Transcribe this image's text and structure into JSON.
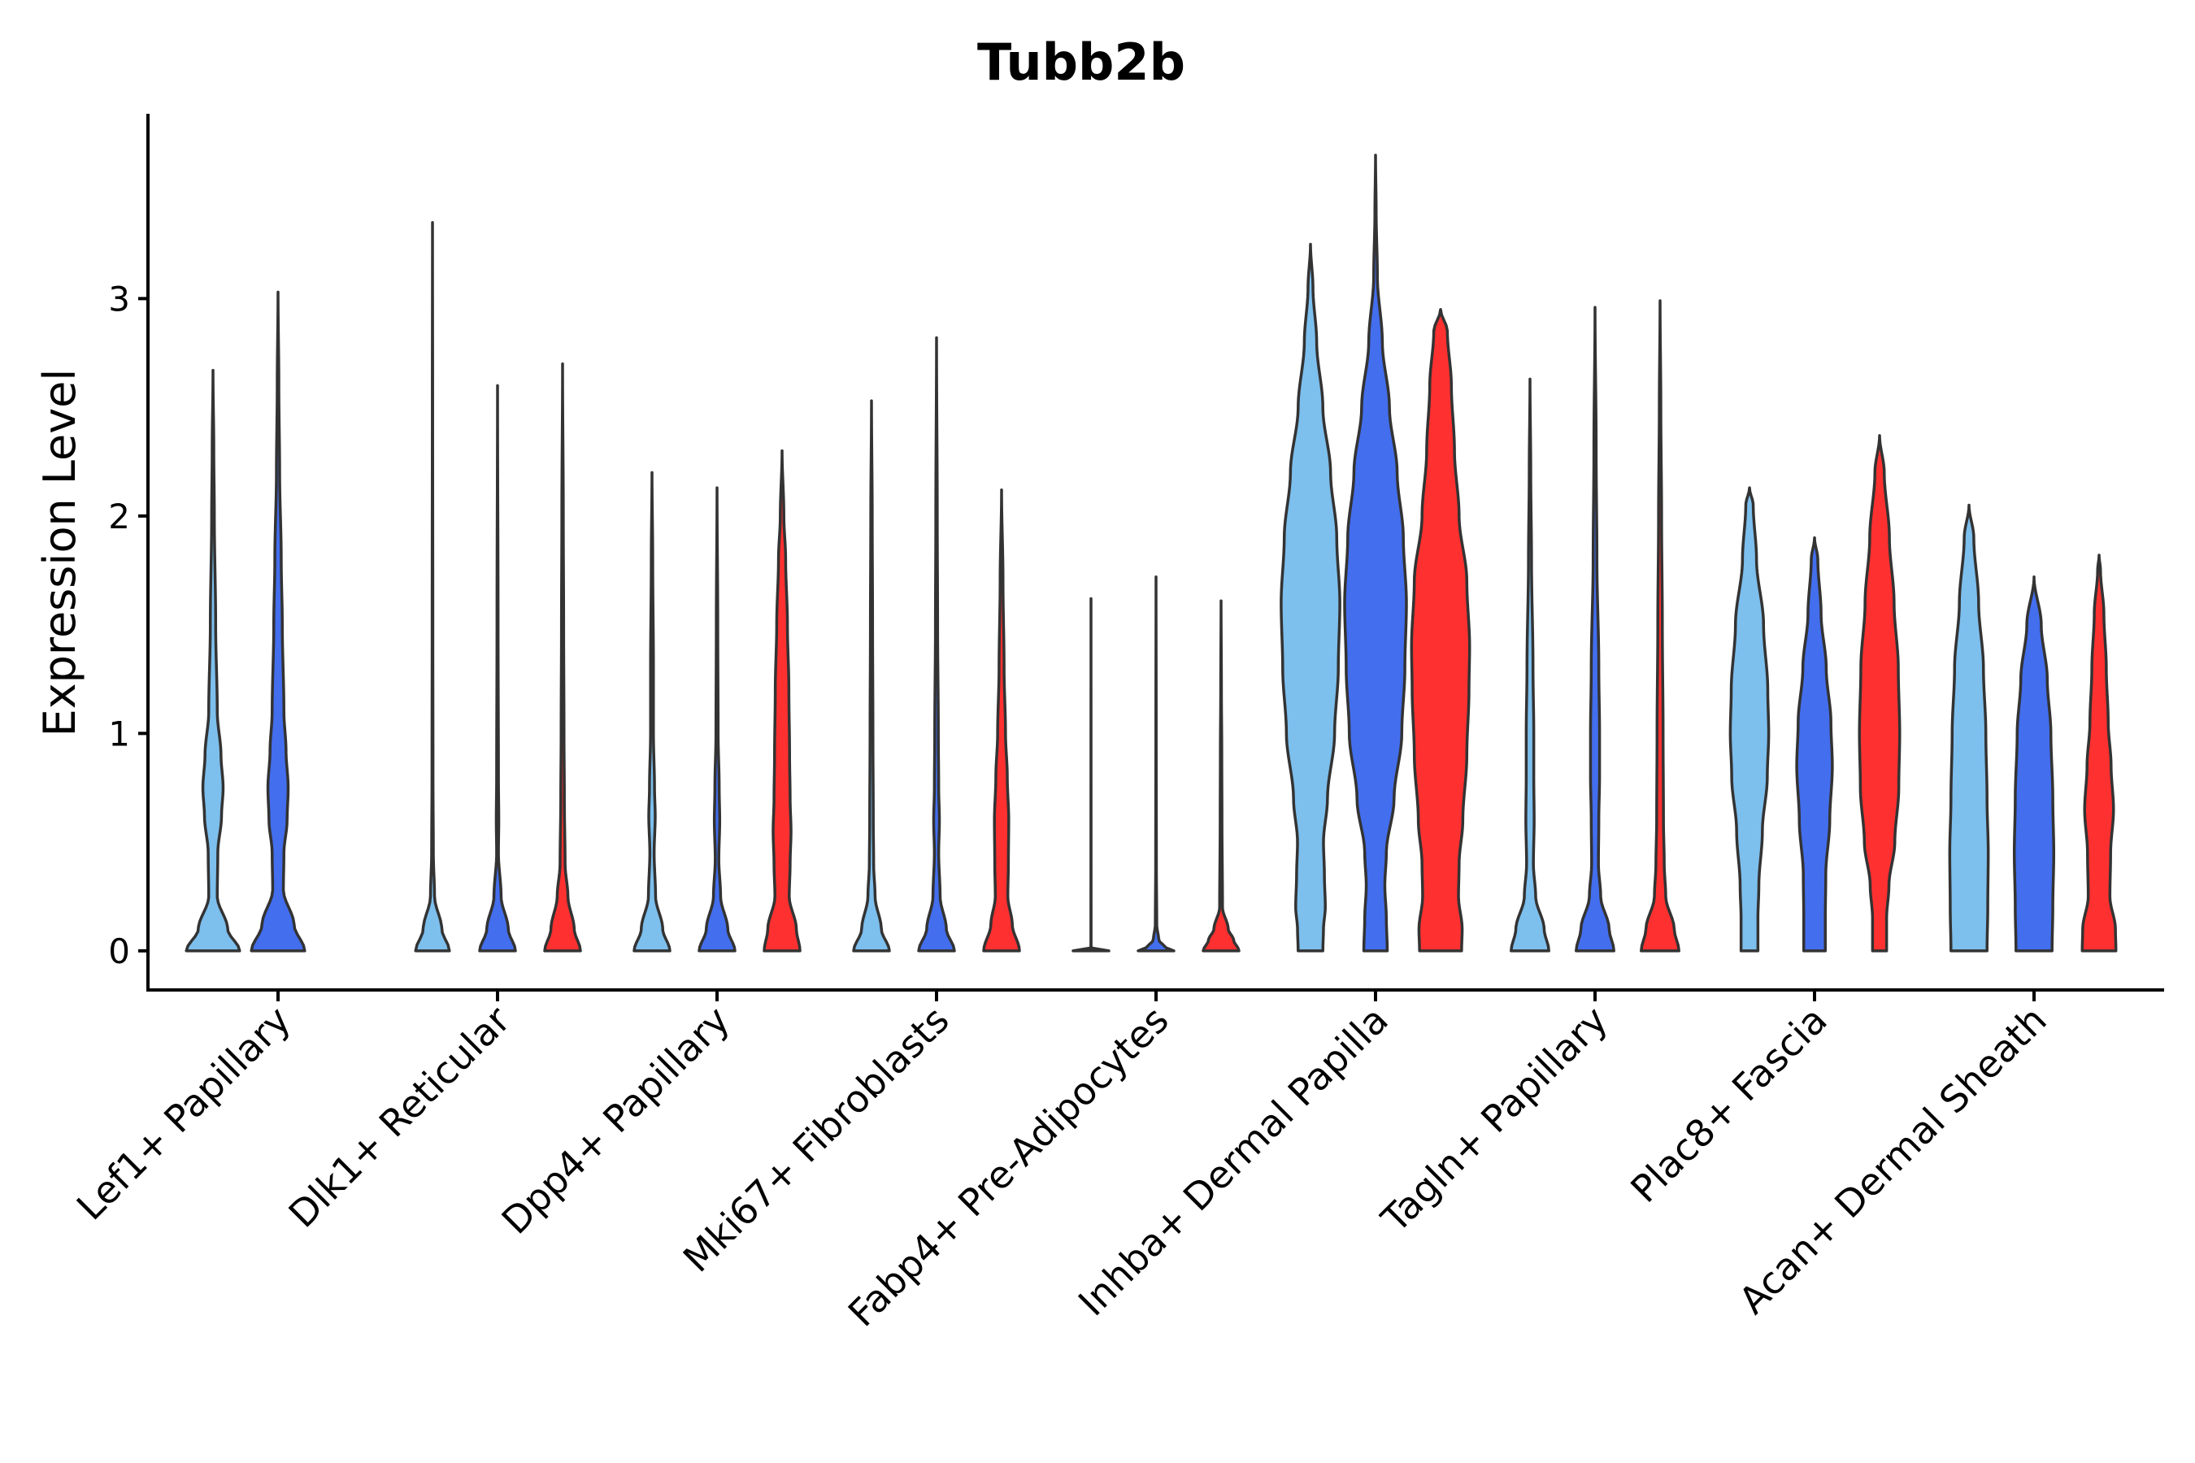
{
  "chart_data": {
    "type": "violin",
    "title": "Tubb2b",
    "ylabel": "Expression Level",
    "xlabel": "",
    "ylim": [
      -0.18,
      3.85
    ],
    "yticks": [
      0,
      1,
      2,
      3
    ],
    "condition_colors": [
      "#7DBFED",
      "#436EEE",
      "#FF3030"
    ],
    "categories": [
      "Lef1+ Papillary",
      "Dlk1+ Reticular",
      "Dpp4+ Papillary",
      "Mki67+ Fibroblasts",
      "Fabp4+ Pre-Adipocytes",
      "Inhba+ Dermal Papilla",
      "Tagln+ Papillary",
      "Plac8+ Fascia",
      "Acan+ Dermal Sheath"
    ],
    "violins": [
      {
        "group": 0,
        "condition": 0,
        "max": 2.67,
        "w": 0.82,
        "profile": [
          [
            0,
            1
          ],
          [
            0.1,
            0.55
          ],
          [
            0.25,
            0.16
          ],
          [
            0.45,
            0.18
          ],
          [
            0.62,
            0.32
          ],
          [
            0.75,
            0.38
          ],
          [
            0.9,
            0.3
          ],
          [
            1.1,
            0.16
          ],
          [
            1.5,
            0.1
          ],
          [
            2.0,
            0.05
          ],
          [
            2.3,
            0.03
          ],
          [
            2.67,
            0
          ]
        ]
      },
      {
        "group": 0,
        "condition": 1,
        "max": 3.03,
        "w": 0.82,
        "profile": [
          [
            0,
            1
          ],
          [
            0.12,
            0.6
          ],
          [
            0.28,
            0.2
          ],
          [
            0.45,
            0.22
          ],
          [
            0.6,
            0.34
          ],
          [
            0.75,
            0.38
          ],
          [
            0.92,
            0.3
          ],
          [
            1.1,
            0.22
          ],
          [
            1.5,
            0.16
          ],
          [
            1.8,
            0.12
          ],
          [
            2.2,
            0.06
          ],
          [
            2.6,
            0.03
          ],
          [
            3.03,
            0
          ]
        ]
      },
      {
        "group": 1,
        "condition": 0,
        "max": 3.35,
        "w": 0.52,
        "profile": [
          [
            0,
            1
          ],
          [
            0.1,
            0.55
          ],
          [
            0.25,
            0.12
          ],
          [
            0.45,
            0.05
          ],
          [
            0.8,
            0.03
          ],
          [
            1.5,
            0.02
          ],
          [
            2.5,
            0.01
          ],
          [
            3.35,
            0
          ]
        ]
      },
      {
        "group": 1,
        "condition": 1,
        "max": 2.6,
        "w": 0.55,
        "profile": [
          [
            0,
            1
          ],
          [
            0.1,
            0.6
          ],
          [
            0.25,
            0.2
          ],
          [
            0.45,
            0.05
          ],
          [
            0.6,
            0.07
          ],
          [
            0.8,
            0.05
          ],
          [
            1.5,
            0.03
          ],
          [
            2.6,
            0
          ]
        ]
      },
      {
        "group": 1,
        "condition": 2,
        "max": 2.7,
        "w": 0.55,
        "profile": [
          [
            0,
            1
          ],
          [
            0.1,
            0.65
          ],
          [
            0.25,
            0.3
          ],
          [
            0.4,
            0.14
          ],
          [
            0.7,
            0.1
          ],
          [
            1.0,
            0.08
          ],
          [
            1.5,
            0.06
          ],
          [
            2.0,
            0.04
          ],
          [
            2.7,
            0
          ]
        ]
      },
      {
        "group": 2,
        "condition": 0,
        "max": 2.2,
        "w": 0.55,
        "profile": [
          [
            0,
            1
          ],
          [
            0.1,
            0.6
          ],
          [
            0.25,
            0.2
          ],
          [
            0.45,
            0.12
          ],
          [
            0.62,
            0.18
          ],
          [
            0.75,
            0.14
          ],
          [
            1.0,
            0.08
          ],
          [
            1.3,
            0.08
          ],
          [
            1.8,
            0.04
          ],
          [
            2.2,
            0
          ]
        ]
      },
      {
        "group": 2,
        "condition": 1,
        "max": 2.13,
        "w": 0.55,
        "profile": [
          [
            0,
            1
          ],
          [
            0.1,
            0.6
          ],
          [
            0.25,
            0.2
          ],
          [
            0.42,
            0.1
          ],
          [
            0.6,
            0.15
          ],
          [
            0.75,
            0.12
          ],
          [
            1.0,
            0.06
          ],
          [
            1.5,
            0.04
          ],
          [
            2.13,
            0
          ]
        ]
      },
      {
        "group": 2,
        "condition": 2,
        "max": 2.3,
        "w": 0.55,
        "profile": [
          [
            0,
            1
          ],
          [
            0.1,
            0.8
          ],
          [
            0.25,
            0.4
          ],
          [
            0.4,
            0.45
          ],
          [
            0.55,
            0.5
          ],
          [
            0.7,
            0.45
          ],
          [
            0.9,
            0.42
          ],
          [
            1.2,
            0.38
          ],
          [
            1.5,
            0.3
          ],
          [
            1.8,
            0.2
          ],
          [
            2.0,
            0.1
          ],
          [
            2.3,
            0
          ]
        ]
      },
      {
        "group": 3,
        "condition": 0,
        "max": 2.53,
        "w": 0.55,
        "profile": [
          [
            0,
            1
          ],
          [
            0.1,
            0.55
          ],
          [
            0.25,
            0.2
          ],
          [
            0.4,
            0.12
          ],
          [
            0.6,
            0.1
          ],
          [
            1.0,
            0.08
          ],
          [
            1.5,
            0.06
          ],
          [
            2.0,
            0.04
          ],
          [
            2.53,
            0
          ]
        ]
      },
      {
        "group": 3,
        "condition": 1,
        "max": 2.82,
        "w": 0.55,
        "profile": [
          [
            0,
            1
          ],
          [
            0.1,
            0.55
          ],
          [
            0.25,
            0.2
          ],
          [
            0.45,
            0.12
          ],
          [
            0.6,
            0.16
          ],
          [
            0.75,
            0.12
          ],
          [
            1.0,
            0.1
          ],
          [
            1.5,
            0.06
          ],
          [
            2.0,
            0.04
          ],
          [
            2.82,
            0
          ]
        ]
      },
      {
        "group": 3,
        "condition": 2,
        "max": 2.12,
        "w": 0.55,
        "profile": [
          [
            0,
            1
          ],
          [
            0.12,
            0.6
          ],
          [
            0.25,
            0.35
          ],
          [
            0.4,
            0.38
          ],
          [
            0.6,
            0.4
          ],
          [
            0.8,
            0.32
          ],
          [
            1.0,
            0.22
          ],
          [
            1.3,
            0.14
          ],
          [
            1.7,
            0.08
          ],
          [
            2.12,
            0
          ]
        ]
      },
      {
        "group": 4,
        "condition": 0,
        "max": 1.62,
        "w": 0.55,
        "profile": [
          [
            0,
            1
          ],
          [
            0.004,
            0.02
          ],
          [
            0.02,
            0.006
          ],
          [
            0.5,
            0.004
          ],
          [
            1.62,
            0
          ]
        ]
      },
      {
        "group": 4,
        "condition": 1,
        "max": 1.72,
        "w": 0.55,
        "profile": [
          [
            0,
            1
          ],
          [
            0.02,
            0.45
          ],
          [
            0.05,
            0.15
          ],
          [
            0.12,
            0.04
          ],
          [
            0.4,
            0.02
          ],
          [
            1.0,
            0.01
          ],
          [
            1.72,
            0
          ]
        ]
      },
      {
        "group": 4,
        "condition": 2,
        "max": 1.61,
        "w": 0.55,
        "profile": [
          [
            0,
            1
          ],
          [
            0.05,
            0.7
          ],
          [
            0.1,
            0.4
          ],
          [
            0.2,
            0.08
          ],
          [
            0.6,
            0.05
          ],
          [
            0.9,
            0.04
          ],
          [
            1.2,
            0.02
          ],
          [
            1.61,
            0
          ]
        ]
      },
      {
        "group": 5,
        "condition": 0,
        "max": 3.25,
        "w": 0.95,
        "profile": [
          [
            0,
            0.4
          ],
          [
            0.1,
            0.42
          ],
          [
            0.2,
            0.48
          ],
          [
            0.35,
            0.45
          ],
          [
            0.5,
            0.42
          ],
          [
            0.7,
            0.55
          ],
          [
            1.0,
            0.78
          ],
          [
            1.3,
            0.9
          ],
          [
            1.6,
            0.95
          ],
          [
            1.9,
            0.85
          ],
          [
            2.2,
            0.65
          ],
          [
            2.5,
            0.4
          ],
          [
            2.8,
            0.2
          ],
          [
            3.05,
            0.08
          ],
          [
            3.25,
            0
          ]
        ]
      },
      {
        "group": 5,
        "condition": 1,
        "max": 3.66,
        "w": 0.95,
        "profile": [
          [
            0,
            0.38
          ],
          [
            0.15,
            0.35
          ],
          [
            0.3,
            0.3
          ],
          [
            0.45,
            0.35
          ],
          [
            0.7,
            0.6
          ],
          [
            1.0,
            0.85
          ],
          [
            1.3,
            0.95
          ],
          [
            1.6,
            1.0
          ],
          [
            1.9,
            0.9
          ],
          [
            2.2,
            0.7
          ],
          [
            2.5,
            0.45
          ],
          [
            2.8,
            0.22
          ],
          [
            3.1,
            0.06
          ],
          [
            3.4,
            0.02
          ],
          [
            3.66,
            0
          ]
        ]
      },
      {
        "group": 5,
        "condition": 2,
        "max": 2.95,
        "w": 0.95,
        "profile": [
          [
            0,
            0.68
          ],
          [
            0.1,
            0.7
          ],
          [
            0.25,
            0.58
          ],
          [
            0.4,
            0.6
          ],
          [
            0.6,
            0.72
          ],
          [
            0.9,
            0.85
          ],
          [
            1.2,
            0.92
          ],
          [
            1.4,
            0.94
          ],
          [
            1.7,
            0.85
          ],
          [
            2.0,
            0.6
          ],
          [
            2.3,
            0.45
          ],
          [
            2.6,
            0.35
          ],
          [
            2.85,
            0.22
          ],
          [
            2.95,
            0
          ]
        ]
      },
      {
        "group": 6,
        "condition": 0,
        "max": 2.63,
        "w": 0.58,
        "profile": [
          [
            0,
            1
          ],
          [
            0.1,
            0.75
          ],
          [
            0.25,
            0.3
          ],
          [
            0.4,
            0.18
          ],
          [
            0.6,
            0.22
          ],
          [
            0.8,
            0.2
          ],
          [
            1.0,
            0.2
          ],
          [
            1.3,
            0.16
          ],
          [
            1.8,
            0.08
          ],
          [
            2.2,
            0.04
          ],
          [
            2.63,
            0
          ]
        ]
      },
      {
        "group": 6,
        "condition": 1,
        "max": 2.96,
        "w": 0.58,
        "profile": [
          [
            0,
            1
          ],
          [
            0.1,
            0.75
          ],
          [
            0.25,
            0.3
          ],
          [
            0.4,
            0.18
          ],
          [
            0.6,
            0.2
          ],
          [
            0.8,
            0.24
          ],
          [
            1.0,
            0.24
          ],
          [
            1.3,
            0.2
          ],
          [
            1.8,
            0.1
          ],
          [
            2.3,
            0.06
          ],
          [
            2.96,
            0
          ]
        ]
      },
      {
        "group": 6,
        "condition": 2,
        "max": 2.99,
        "w": 0.58,
        "profile": [
          [
            0,
            1
          ],
          [
            0.1,
            0.75
          ],
          [
            0.25,
            0.3
          ],
          [
            0.4,
            0.22
          ],
          [
            0.6,
            0.18
          ],
          [
            1.0,
            0.16
          ],
          [
            1.5,
            0.12
          ],
          [
            2.0,
            0.08
          ],
          [
            2.5,
            0.04
          ],
          [
            2.99,
            0
          ]
        ]
      },
      {
        "group": 7,
        "condition": 0,
        "max": 2.13,
        "w": 0.72,
        "profile": [
          [
            0,
            0.36
          ],
          [
            0.15,
            0.36
          ],
          [
            0.3,
            0.4
          ],
          [
            0.55,
            0.55
          ],
          [
            0.8,
            0.76
          ],
          [
            1.0,
            0.82
          ],
          [
            1.2,
            0.78
          ],
          [
            1.5,
            0.6
          ],
          [
            1.8,
            0.3
          ],
          [
            2.05,
            0.16
          ],
          [
            2.13,
            0
          ]
        ]
      },
      {
        "group": 7,
        "condition": 1,
        "max": 1.9,
        "w": 0.72,
        "profile": [
          [
            0,
            0.46
          ],
          [
            0.15,
            0.46
          ],
          [
            0.35,
            0.48
          ],
          [
            0.6,
            0.65
          ],
          [
            0.85,
            0.76
          ],
          [
            1.05,
            0.7
          ],
          [
            1.3,
            0.5
          ],
          [
            1.55,
            0.28
          ],
          [
            1.8,
            0.14
          ],
          [
            1.9,
            0
          ]
        ]
      },
      {
        "group": 7,
        "condition": 2,
        "max": 2.37,
        "w": 0.72,
        "profile": [
          [
            0,
            0.3
          ],
          [
            0.15,
            0.3
          ],
          [
            0.3,
            0.4
          ],
          [
            0.5,
            0.65
          ],
          [
            0.75,
            0.82
          ],
          [
            1.0,
            0.86
          ],
          [
            1.3,
            0.8
          ],
          [
            1.6,
            0.62
          ],
          [
            1.9,
            0.42
          ],
          [
            2.2,
            0.2
          ],
          [
            2.37,
            0
          ]
        ]
      },
      {
        "group": 8,
        "condition": 0,
        "max": 2.05,
        "w": 0.74,
        "profile": [
          [
            0,
            0.75
          ],
          [
            0.2,
            0.78
          ],
          [
            0.45,
            0.8
          ],
          [
            0.7,
            0.75
          ],
          [
            1.0,
            0.7
          ],
          [
            1.3,
            0.6
          ],
          [
            1.6,
            0.4
          ],
          [
            1.9,
            0.2
          ],
          [
            2.05,
            0
          ]
        ]
      },
      {
        "group": 8,
        "condition": 1,
        "max": 1.72,
        "w": 0.74,
        "profile": [
          [
            0,
            0.75
          ],
          [
            0.2,
            0.78
          ],
          [
            0.45,
            0.82
          ],
          [
            0.7,
            0.78
          ],
          [
            1.0,
            0.7
          ],
          [
            1.25,
            0.55
          ],
          [
            1.5,
            0.3
          ],
          [
            1.72,
            0
          ]
        ]
      },
      {
        "group": 8,
        "condition": 2,
        "max": 1.82,
        "w": 0.74,
        "profile": [
          [
            0,
            0.7
          ],
          [
            0.1,
            0.68
          ],
          [
            0.25,
            0.45
          ],
          [
            0.45,
            0.48
          ],
          [
            0.65,
            0.6
          ],
          [
            0.85,
            0.5
          ],
          [
            1.05,
            0.38
          ],
          [
            1.3,
            0.3
          ],
          [
            1.55,
            0.2
          ],
          [
            1.75,
            0.06
          ],
          [
            1.82,
            0
          ]
        ]
      }
    ]
  }
}
